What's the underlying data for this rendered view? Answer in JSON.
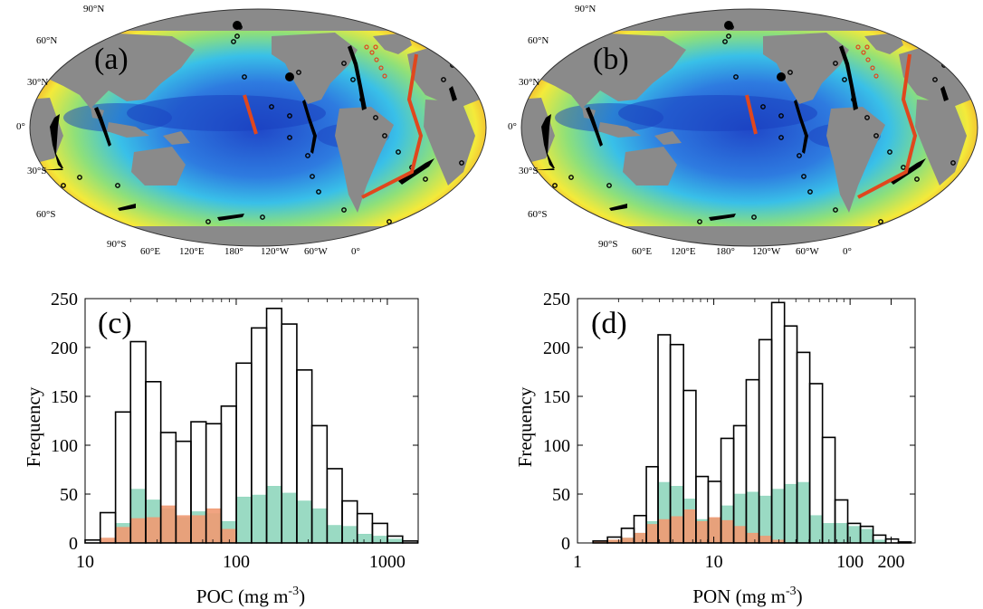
{
  "figure": {
    "maps": [
      {
        "label": "(a)",
        "lat_labels": [
          "90°N",
          "60°N",
          "30°N",
          "0°",
          "30°S",
          "60°S",
          "90°S"
        ],
        "lon_labels": [
          "60°E",
          "120°E",
          "180°",
          "120°W",
          "60°W",
          "0°"
        ],
        "colors": {
          "land": "#8a8a8a",
          "ocean_low": "#1f4fd0",
          "ocean_mid": "#35b6e8",
          "ocean_high": "#f3ea3c",
          "ocean_peak": "#ef6a20",
          "samples_black": "#000000",
          "samples_orange": "#e0471d"
        }
      },
      {
        "label": "(b)",
        "lat_labels": [
          "90°N",
          "60°N",
          "30°N",
          "0°",
          "30°S",
          "60°S",
          "90°S"
        ],
        "lon_labels": [
          "60°E",
          "120°E",
          "180°",
          "120°W",
          "60°W",
          "0°"
        ],
        "colors": {
          "land": "#8a8a8a",
          "ocean_low": "#1f4fd0",
          "ocean_mid": "#35b6e8",
          "ocean_high": "#f3ea3c",
          "ocean_peak": "#ef6a20",
          "samples_black": "#000000",
          "samples_orange": "#e0471d"
        }
      }
    ]
  },
  "chart_data": [
    {
      "type": "bar",
      "panel_label": "(c)",
      "xscale": "log",
      "xlabel": {
        "text": "POC (mg m",
        "sup": "-3",
        "close": ")"
      },
      "ylabel": "Frequency",
      "xlim": [
        10,
        1600
      ],
      "ylim": [
        0,
        250
      ],
      "xtick_values": [
        10,
        100,
        1000
      ],
      "xtick_labels": [
        "10",
        "100",
        "1000"
      ],
      "ytick_values": [
        0,
        50,
        100,
        150,
        200,
        250
      ],
      "ytick_labels": [
        "0",
        "50",
        "100",
        "150",
        "200",
        "250"
      ],
      "bin_edges": [
        10,
        12.6,
        15.9,
        20,
        25.2,
        31.7,
        39.9,
        50.2,
        63.2,
        79.6,
        100.2,
        126.2,
        158.9,
        200,
        251.8,
        317,
        399.1,
        502.4,
        632.5,
        796.3,
        1002.5,
        1262,
        1588.8
      ],
      "series": [
        {
          "style": "outline",
          "color": "#000000",
          "values": [
            3,
            31,
            134,
            206,
            165,
            113,
            104,
            124,
            122,
            140,
            184,
            220,
            240,
            224,
            177,
            120,
            76,
            43,
            30,
            20,
            7,
            2
          ]
        },
        {
          "style": "fill",
          "color": "#8fd6bd",
          "values": [
            0,
            0,
            20,
            55,
            44,
            35,
            26,
            32,
            30,
            22,
            47,
            49,
            58,
            51,
            43,
            35,
            18,
            17,
            9,
            7,
            4,
            0
          ]
        },
        {
          "style": "fill",
          "color": "#ef9a73",
          "values": [
            0,
            5,
            16,
            25,
            26,
            38,
            28,
            28,
            35,
            14,
            0,
            0,
            0,
            0,
            0,
            0,
            0,
            0,
            0,
            0,
            0,
            0
          ]
        }
      ]
    },
    {
      "type": "bar",
      "panel_label": "(d)",
      "xscale": "log",
      "xlabel": {
        "text": "PON (mg m",
        "sup": "-3",
        "close": ")"
      },
      "ylabel": "Frequency",
      "xlim": [
        1,
        300
      ],
      "ylim": [
        0,
        250
      ],
      "xtick_values": [
        1,
        10,
        100,
        200
      ],
      "xtick_labels": [
        "1",
        "10",
        "100",
        "200"
      ],
      "ytick_values": [
        0,
        50,
        100,
        150,
        200,
        250
      ],
      "ytick_labels": [
        "0",
        "50",
        "100",
        "150",
        "200",
        "250"
      ],
      "bin_edges": [
        1.3,
        1.66,
        2.1,
        2.6,
        3.2,
        3.9,
        4.8,
        6.0,
        7.4,
        9.1,
        11.3,
        14.0,
        17.3,
        21.5,
        26.6,
        33.0,
        40.8,
        50.6,
        62.7,
        77.6,
        96.1,
        119.1,
        147.5,
        182.7,
        226.3,
        280.3
      ],
      "series": [
        {
          "style": "outline",
          "color": "#000000",
          "values": [
            2,
            6,
            15,
            28,
            78,
            213,
            203,
            156,
            68,
            63,
            107,
            120,
            167,
            208,
            246,
            222,
            195,
            163,
            108,
            44,
            20,
            17,
            8,
            4,
            1
          ]
        },
        {
          "style": "fill",
          "color": "#8fd6bd",
          "values": [
            0,
            3,
            5,
            10,
            22,
            62,
            58,
            45,
            24,
            25,
            38,
            50,
            52,
            48,
            55,
            60,
            62,
            28,
            20,
            20,
            17,
            14,
            3,
            0,
            0
          ]
        },
        {
          "style": "fill",
          "color": "#ef9a73",
          "values": [
            1,
            3,
            5,
            10,
            19,
            24,
            27,
            34,
            22,
            26,
            23,
            17,
            10,
            7,
            3,
            0,
            0,
            0,
            0,
            0,
            0,
            0,
            0,
            0,
            0
          ]
        }
      ]
    }
  ]
}
